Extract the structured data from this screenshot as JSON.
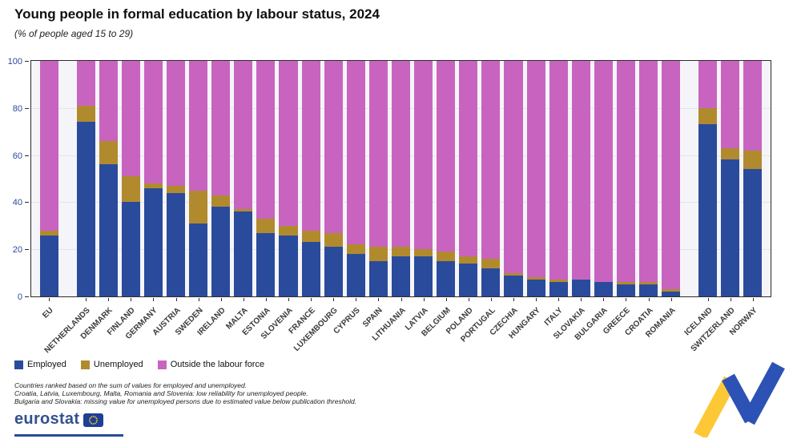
{
  "header": {
    "title": "Young people in formal education by labour status, 2024",
    "subtitle": "(% of people aged 15 to 29)"
  },
  "legend": [
    {
      "label": "Employed",
      "color": "#2a4b9b"
    },
    {
      "label": "Unemployed",
      "color": "#b18a2e"
    },
    {
      "label": "Outside the labour force",
      "color": "#c864c0"
    }
  ],
  "footnotes": [
    "Countries ranked based on the sum of values for employed and unemployed.",
    "Croatia, Latvia, Luxembourg, Malta, Romania and Slovenia: low reliability for unemployed people.",
    "Bulgaria and Slovakia: missing value for unemployed persons due to estimated value below publication threshold."
  ],
  "footer": {
    "brand": "eurostat"
  },
  "colors": {
    "employed": "#2a4b9b",
    "unemployed": "#b18a2e",
    "outside": "#c864c0",
    "axis_text": "#2a4b9b",
    "motif_yellow": "#fdc835",
    "motif_blue": "#2c52b5",
    "flag_blue": "#1e3f97",
    "flag_stars": "#ffd617"
  },
  "chart_data": {
    "type": "bar",
    "stacked": true,
    "title": "Young people in formal education by labour status, 2024",
    "xlabel": "",
    "ylabel": "% of people aged 15 to 29",
    "ylim": [
      0,
      100
    ],
    "yticks": [
      0,
      20,
      40,
      60,
      80,
      100
    ],
    "grid": false,
    "legend_position": "bottom-left",
    "gap_after": [
      0,
      27
    ],
    "categories": [
      "EU",
      "NETHERLANDS",
      "DENMARK",
      "FINLAND",
      "GERMANY",
      "AUSTRIA",
      "SWEDEN",
      "IRELAND",
      "MALTA",
      "ESTONIA",
      "SLOVENIA",
      "FRANCE",
      "LUXEMBOURG",
      "CYPRUS",
      "SPAIN",
      "LITHUANIA",
      "LATVIA",
      "BELGIUM",
      "POLAND",
      "PORTUGAL",
      "CZECHIA",
      "HUNGARY",
      "ITALY",
      "SLOVAKIA",
      "BULGARIA",
      "GREECE",
      "CROATIA",
      "ROMANIA",
      "ICELAND",
      "SWITZERLAND",
      "NORWAY"
    ],
    "series": [
      {
        "name": "Employed",
        "color": "#2a4b9b",
        "values": [
          26,
          74,
          56,
          40,
          46,
          44,
          31,
          38,
          36,
          27,
          26,
          23,
          21,
          18,
          15,
          17,
          17,
          15,
          14,
          12,
          9,
          7,
          6,
          7,
          6,
          5,
          5,
          2,
          73,
          58,
          54
        ]
      },
      {
        "name": "Unemployed",
        "color": "#b18a2e",
        "values": [
          2,
          7,
          10,
          11,
          2,
          3,
          14,
          5,
          1,
          6,
          4,
          5,
          6,
          4,
          6,
          4,
          3,
          4,
          3,
          4,
          1,
          1,
          1,
          0,
          0,
          1,
          1,
          1,
          7,
          5,
          8
        ]
      },
      {
        "name": "Outside the labour force",
        "color": "#c864c0",
        "values": [
          72,
          19,
          34,
          49,
          52,
          53,
          55,
          57,
          63,
          67,
          70,
          72,
          73,
          78,
          79,
          79,
          80,
          81,
          83,
          84,
          90,
          92,
          93,
          93,
          94,
          94,
          94,
          97,
          20,
          37,
          38
        ]
      }
    ]
  }
}
